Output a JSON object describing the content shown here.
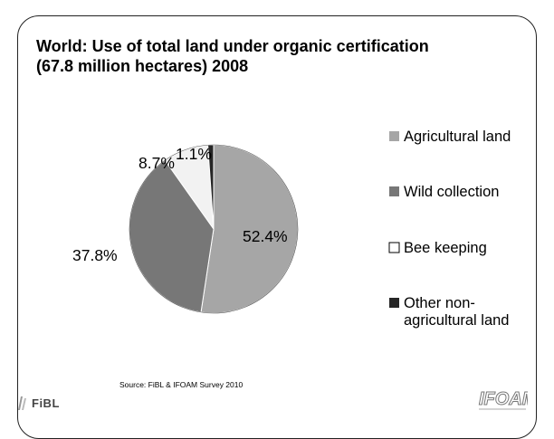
{
  "slide": {
    "title_line1": "World: Use of total land under organic certification",
    "title_line2": "(67.8 million hectares) 2008",
    "source": "Source: FiBL & IFOAM Survey 2010",
    "logo_left": "FiBL",
    "logo_right": "IFOAM"
  },
  "chart_data": {
    "type": "pie",
    "title": "World: Use of total land under organic certification (67.8 million hectares) 2008",
    "legend_position": "right",
    "slices": [
      {
        "name": "Agricultural land",
        "value": 52.4,
        "label": "52.4%",
        "color": "#a6a6a6"
      },
      {
        "name": "Wild collection",
        "value": 37.8,
        "label": "37.8%",
        "color": "#777777"
      },
      {
        "name": "Bee keeping",
        "value": 8.7,
        "label": "8.7%",
        "color": "#f2f2f2"
      },
      {
        "name": "Other non-agricultural land",
        "value": 1.1,
        "label": "1.1%",
        "color": "#262626"
      }
    ],
    "legend": [
      {
        "lines": [
          "Agricultural land"
        ]
      },
      {
        "lines": [
          "Wild collection"
        ]
      },
      {
        "lines": [
          "Bee keeping"
        ]
      },
      {
        "lines": [
          "Other non-",
          "agricultural land"
        ]
      }
    ]
  }
}
